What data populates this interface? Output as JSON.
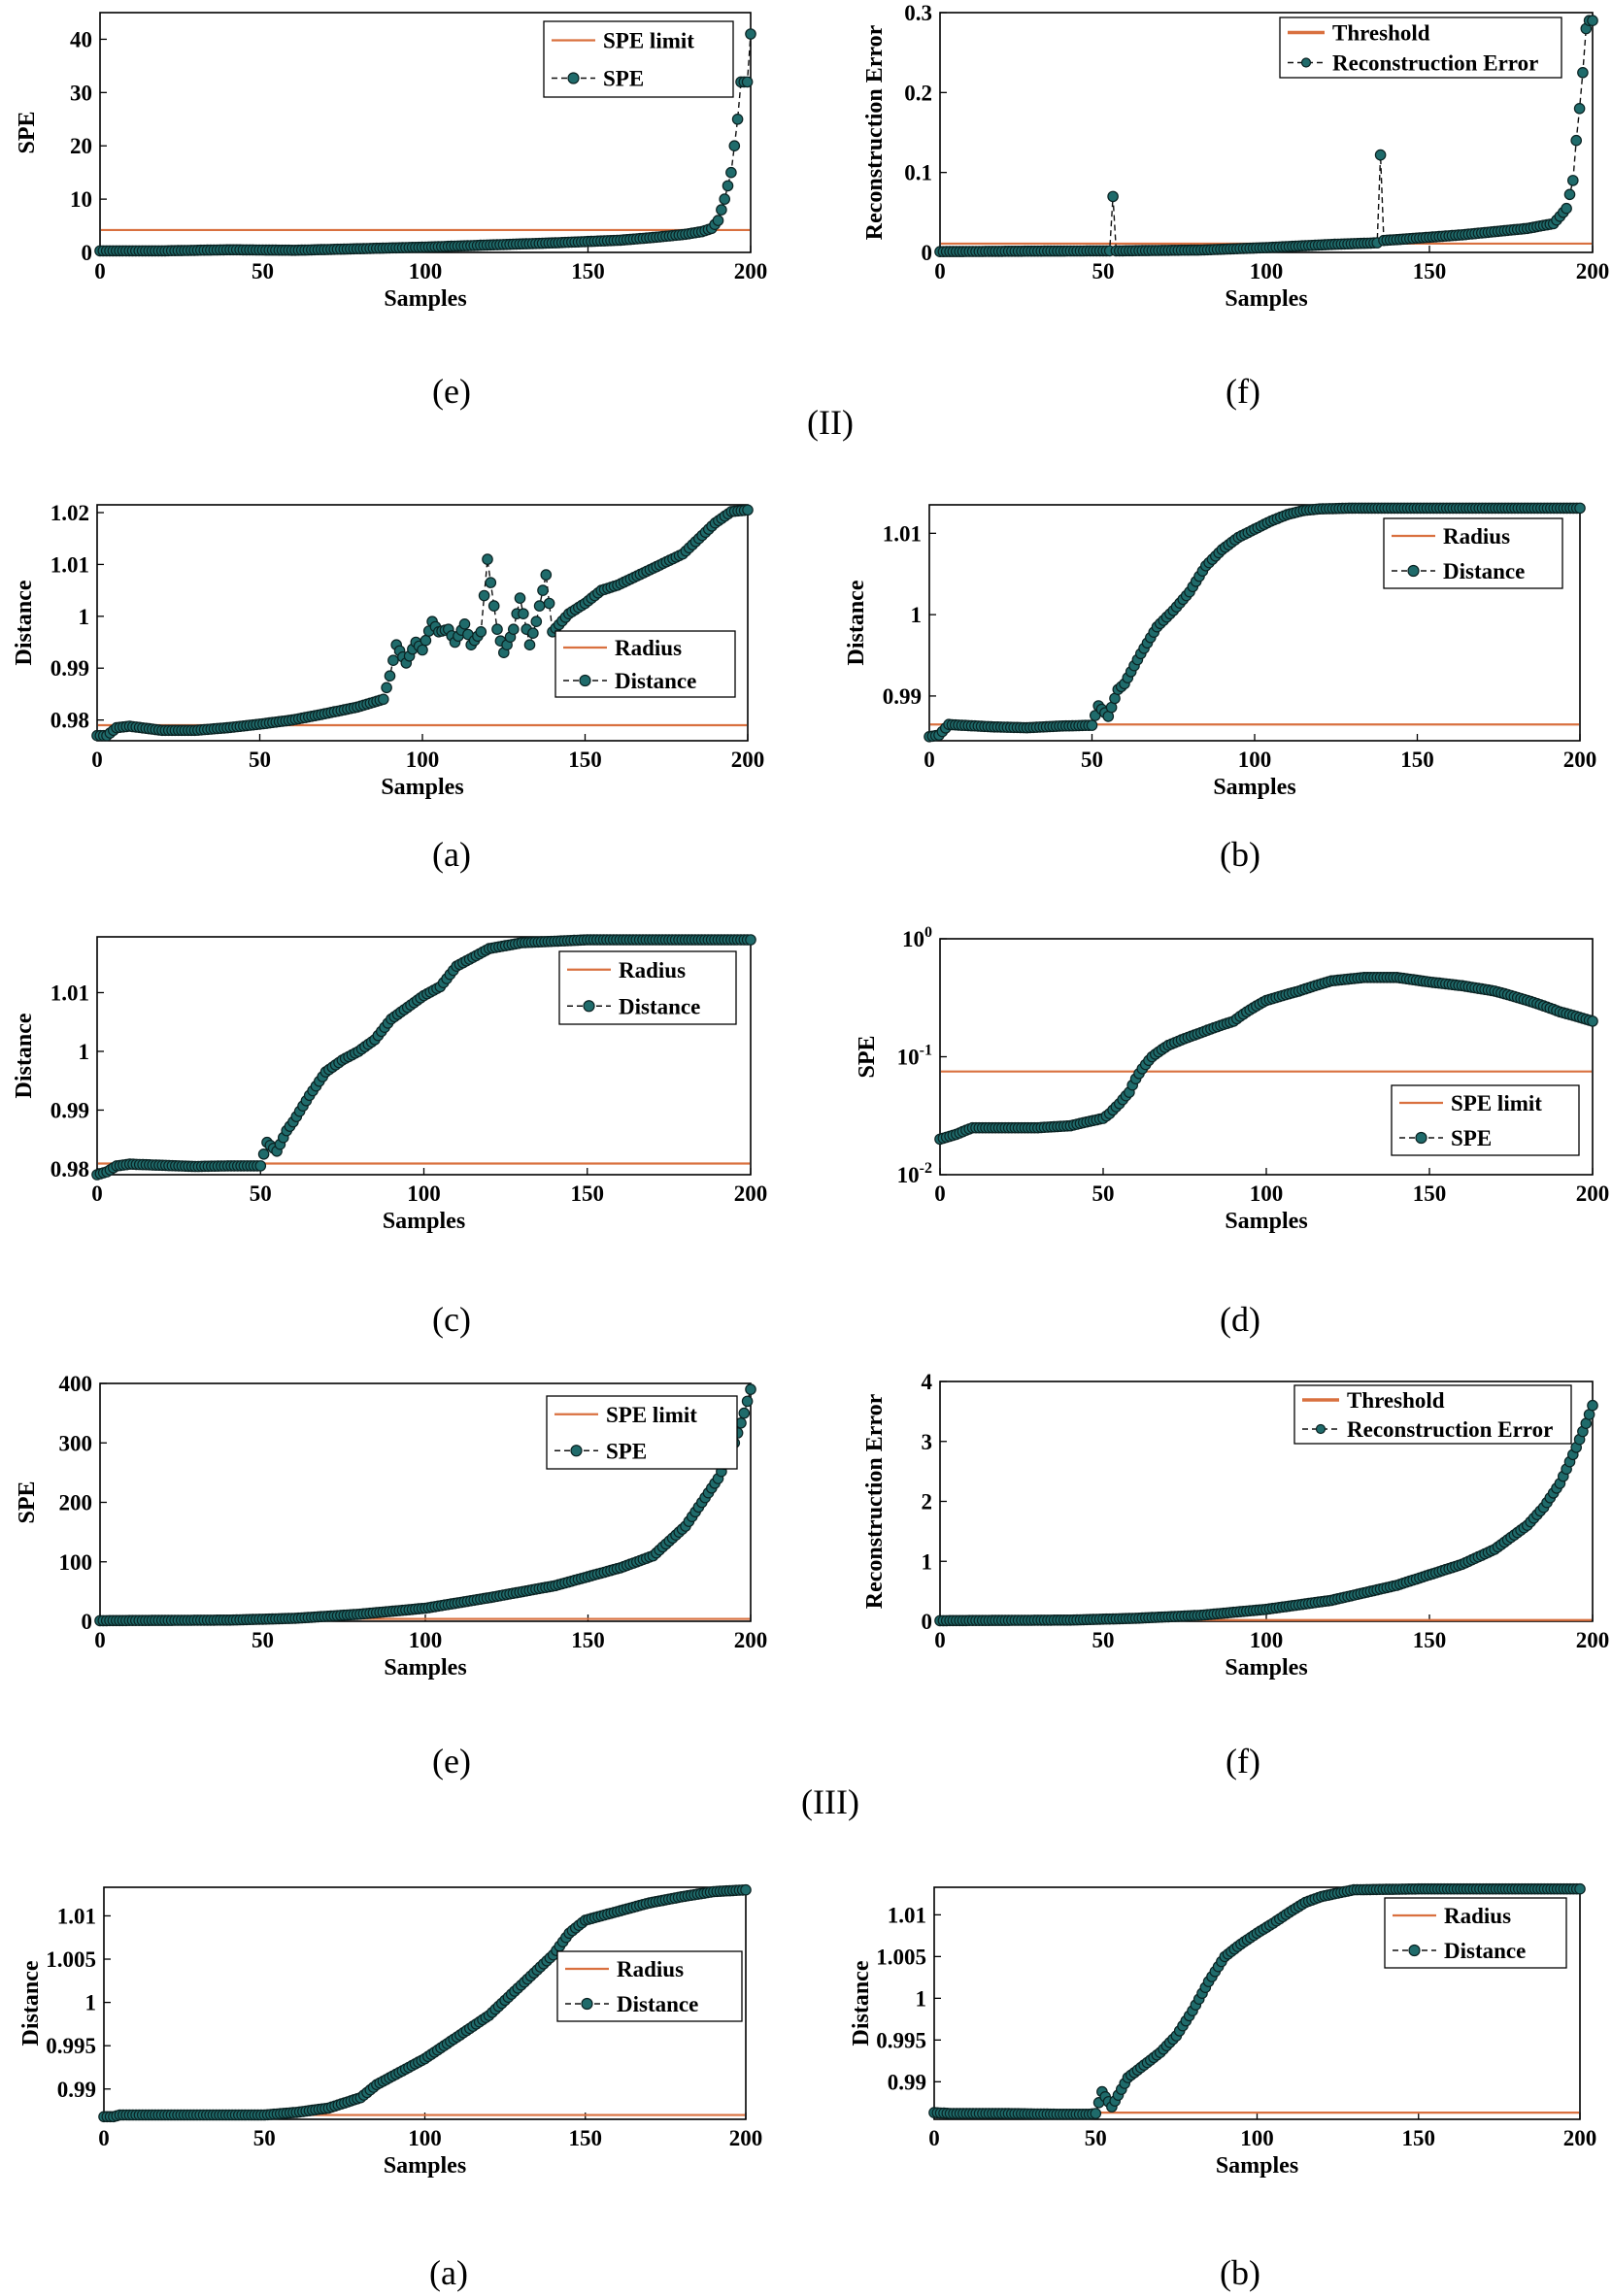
{
  "colors": {
    "limit": "#d9703f",
    "marker_fill": "#1f6b6b",
    "marker_edge": "#0a2222",
    "line": "#111111"
  },
  "captions": [
    {
      "id": "cap-e1",
      "text": "(e)"
    },
    {
      "id": "cap-f1",
      "text": "(f)"
    },
    {
      "id": "cap-II",
      "text": "(II)"
    },
    {
      "id": "cap-a1",
      "text": "(a)"
    },
    {
      "id": "cap-b1",
      "text": "(b)"
    },
    {
      "id": "cap-c1",
      "text": "(c)"
    },
    {
      "id": "cap-d1",
      "text": "(d)"
    },
    {
      "id": "cap-e2",
      "text": "(e)"
    },
    {
      "id": "cap-f2",
      "text": "(f)"
    },
    {
      "id": "cap-III",
      "text": "(III)"
    },
    {
      "id": "cap-a2",
      "text": "(a)"
    },
    {
      "id": "cap-b2",
      "text": "(b)"
    }
  ],
  "chart_data": [
    {
      "id": "II-e",
      "type": "line",
      "xlabel": "Samples",
      "ylabel": "SPE",
      "xlim": [
        0,
        200
      ],
      "ylim": [
        0,
        45
      ],
      "xticks": [
        "0",
        "50",
        "100",
        "150",
        "200"
      ],
      "yticks": [
        "0",
        "10",
        "20",
        "30",
        "40"
      ],
      "legend": {
        "position": "top-right",
        "items": [
          "SPE limit",
          "SPE"
        ]
      },
      "series": [
        {
          "name": "SPE limit",
          "constant": 4.2
        },
        {
          "name": "SPE",
          "x": [
            0,
            20,
            40,
            60,
            80,
            100,
            120,
            140,
            160,
            170,
            180,
            185,
            188,
            190,
            192,
            194,
            195,
            196,
            197,
            198,
            199,
            200
          ],
          "y": [
            0.3,
            0.3,
            0.5,
            0.4,
            0.7,
            1.0,
            1.4,
            1.8,
            2.3,
            2.8,
            3.4,
            3.9,
            4.5,
            6,
            10,
            15,
            20,
            25,
            32,
            32,
            32,
            41
          ]
        }
      ]
    },
    {
      "id": "II-f",
      "type": "line",
      "xlabel": "Samples",
      "ylabel": "Reconstruction Error",
      "xlim": [
        0,
        200
      ],
      "ylim": [
        0,
        0.3
      ],
      "xticks": [
        "0",
        "50",
        "100",
        "150",
        "200"
      ],
      "yticks": [
        "0",
        "0.1",
        "0.2",
        "0.3"
      ],
      "legend": {
        "position": "top-right",
        "items": [
          "Threshold",
          "Reconstruction Error"
        ]
      },
      "series": [
        {
          "name": "Threshold",
          "constant": 0.011
        },
        {
          "name": "Reconstruction Error",
          "x": [
            0,
            50,
            52,
            53,
            54,
            56,
            80,
            100,
            120,
            134,
            135,
            136,
            140,
            160,
            180,
            188,
            190,
            192,
            194,
            195,
            196,
            197,
            198,
            199,
            200
          ],
          "y": [
            0.001,
            0.002,
            0.002,
            0.07,
            0.002,
            0.002,
            0.003,
            0.006,
            0.01,
            0.012,
            0.122,
            0.015,
            0.016,
            0.022,
            0.03,
            0.036,
            0.045,
            0.055,
            0.09,
            0.14,
            0.18,
            0.225,
            0.28,
            0.29,
            0.29
          ]
        }
      ]
    },
    {
      "id": "IIa",
      "type": "line",
      "xlabel": "Samples",
      "ylabel": "Distance",
      "xlim": [
        0,
        200
      ],
      "ylim": [
        0.976,
        1.0215
      ],
      "xticks": [
        "0",
        "50",
        "100",
        "150",
        "200"
      ],
      "yticks": [
        "0.98",
        "0.99",
        "1",
        "1.01",
        "1.02"
      ],
      "legend": {
        "position": "right",
        "items": [
          "Radius",
          "Distance"
        ]
      },
      "series": [
        {
          "name": "Radius",
          "constant": 0.979
        },
        {
          "name": "Distance",
          "x": [
            0,
            3,
            6,
            10,
            20,
            30,
            40,
            50,
            60,
            70,
            80,
            88,
            90,
            92,
            95,
            98,
            100,
            103,
            105,
            108,
            110,
            113,
            115,
            118,
            120,
            123,
            125,
            128,
            130,
            133,
            135,
            138,
            140,
            145,
            150,
            155,
            160,
            165,
            170,
            175,
            180,
            185,
            190,
            195,
            200
          ],
          "y": [
            0.977,
            0.977,
            0.9785,
            0.9788,
            0.978,
            0.978,
            0.9785,
            0.9792,
            0.98,
            0.9812,
            0.9825,
            0.984,
            0.9885,
            0.9945,
            0.991,
            0.995,
            0.9935,
            0.999,
            0.997,
            0.9975,
            0.995,
            0.9985,
            0.9945,
            0.997,
            1.011,
            0.9975,
            0.993,
            0.9975,
            1.0035,
            0.9945,
            0.999,
            1.008,
            0.997,
            1.0005,
            1.0025,
            1.005,
            1.006,
            1.0075,
            1.009,
            1.0105,
            1.012,
            1.015,
            1.018,
            1.0202,
            1.0205
          ]
        }
      ]
    },
    {
      "id": "IIb",
      "type": "line",
      "xlabel": "Samples",
      "ylabel": "Distance",
      "xlim": [
        0,
        200
      ],
      "ylim": [
        0.9845,
        1.0135
      ],
      "xticks": [
        "0",
        "50",
        "100",
        "150",
        "200"
      ],
      "yticks": [
        "0.99",
        "1",
        "1.01"
      ],
      "legend": {
        "position": "top-right",
        "items": [
          "Radius",
          "Distance"
        ]
      },
      "series": [
        {
          "name": "Radius",
          "constant": 0.9865
        },
        {
          "name": "Distance",
          "x": [
            0,
            3,
            6,
            10,
            20,
            30,
            40,
            50,
            52,
            55,
            58,
            60,
            65,
            70,
            75,
            80,
            85,
            90,
            95,
            100,
            105,
            110,
            115,
            120,
            130,
            150,
            175,
            200
          ],
          "y": [
            0.985,
            0.9852,
            0.9865,
            0.9864,
            0.9862,
            0.9861,
            0.9863,
            0.9864,
            0.9888,
            0.9875,
            0.9908,
            0.9915,
            0.9952,
            0.9985,
            1.0005,
            1.0028,
            1.006,
            1.008,
            1.0095,
            1.0105,
            1.0115,
            1.0123,
            1.0128,
            1.013,
            1.0131,
            1.0131,
            1.0131,
            1.0131
          ]
        }
      ]
    },
    {
      "id": "IIc",
      "type": "line",
      "xlabel": "Samples",
      "ylabel": "Distance",
      "xlim": [
        0,
        200
      ],
      "ylim": [
        0.979,
        1.0195
      ],
      "xticks": [
        "0",
        "50",
        "100",
        "150",
        "200"
      ],
      "yticks": [
        "0.98",
        "0.99",
        "1",
        "1.01"
      ],
      "legend": {
        "position": "top-right",
        "items": [
          "Radius",
          "Distance"
        ]
      },
      "series": [
        {
          "name": "Radius",
          "constant": 0.9809
        },
        {
          "name": "Distance",
          "x": [
            0,
            3,
            6,
            10,
            20,
            30,
            40,
            50,
            52,
            55,
            58,
            60,
            65,
            70,
            75,
            80,
            85,
            90,
            95,
            100,
            105,
            110,
            115,
            120,
            130,
            150,
            175,
            200
          ],
          "y": [
            0.979,
            0.9795,
            0.9805,
            0.9808,
            0.9806,
            0.9804,
            0.9805,
            0.9805,
            0.9845,
            0.983,
            0.9865,
            0.988,
            0.9925,
            0.9965,
            0.9985,
            1.0,
            1.002,
            1.0055,
            1.0075,
            1.0095,
            1.011,
            1.0145,
            1.016,
            1.0175,
            1.0185,
            1.019,
            1.019,
            1.019
          ]
        }
      ]
    },
    {
      "id": "IId",
      "type": "line",
      "xlabel": "Samples",
      "ylabel": "SPE",
      "xlim": [
        0,
        200
      ],
      "ylim": [
        0.01,
        1
      ],
      "yscale": "log",
      "xticks": [
        "0",
        "50",
        "100",
        "150",
        "200"
      ],
      "yticks": [
        "10^-2",
        "10^-1",
        "10^0"
      ],
      "legend": {
        "position": "bottom-right",
        "items": [
          "SPE limit",
          "SPE"
        ]
      },
      "series": [
        {
          "name": "SPE limit",
          "constant": 0.075
        },
        {
          "name": "SPE",
          "x": [
            0,
            5,
            10,
            20,
            30,
            40,
            45,
            50,
            52,
            55,
            58,
            60,
            65,
            70,
            80,
            90,
            100,
            110,
            120,
            130,
            140,
            150,
            160,
            170,
            180,
            190,
            200
          ],
          "y": [
            0.02,
            0.022,
            0.025,
            0.025,
            0.025,
            0.026,
            0.028,
            0.03,
            0.033,
            0.04,
            0.05,
            0.065,
            0.1,
            0.125,
            0.16,
            0.2,
            0.3,
            0.36,
            0.44,
            0.47,
            0.47,
            0.43,
            0.4,
            0.36,
            0.3,
            0.24,
            0.2
          ]
        }
      ]
    },
    {
      "id": "III-e",
      "type": "line",
      "xlabel": "Samples",
      "ylabel": "SPE",
      "xlim": [
        0,
        200
      ],
      "ylim": [
        0,
        400
      ],
      "xticks": [
        "0",
        "50",
        "100",
        "150",
        "200"
      ],
      "yticks": [
        "0",
        "100",
        "200",
        "300",
        "400"
      ],
      "legend": {
        "position": "top-right",
        "items": [
          "SPE limit",
          "SPE"
        ]
      },
      "series": [
        {
          "name": "SPE limit",
          "constant": 4
        },
        {
          "name": "SPE",
          "x": [
            0,
            40,
            60,
            80,
            100,
            120,
            140,
            160,
            170,
            180,
            185,
            190,
            195,
            198,
            200
          ],
          "y": [
            1,
            2,
            5,
            12,
            22,
            40,
            60,
            90,
            110,
            160,
            200,
            240,
            300,
            350,
            390
          ]
        }
      ]
    },
    {
      "id": "III-f",
      "type": "line",
      "xlabel": "Samples",
      "ylabel": "Reconstruction Error",
      "xlim": [
        0,
        200
      ],
      "ylim": [
        0,
        4
      ],
      "xticks": [
        "0",
        "50",
        "100",
        "150",
        "200"
      ],
      "yticks": [
        "0",
        "1",
        "2",
        "3",
        "4"
      ],
      "legend": {
        "position": "top-right",
        "items": [
          "Threshold",
          "Reconstruction Error"
        ]
      },
      "series": [
        {
          "name": "Threshold",
          "constant": 0.02
        },
        {
          "name": "Reconstruction Error",
          "x": [
            0,
            40,
            60,
            80,
            100,
            120,
            140,
            160,
            170,
            180,
            185,
            190,
            195,
            198,
            200
          ],
          "y": [
            0.01,
            0.02,
            0.05,
            0.1,
            0.2,
            0.35,
            0.6,
            0.95,
            1.2,
            1.6,
            1.9,
            2.3,
            2.9,
            3.3,
            3.6
          ]
        }
      ]
    },
    {
      "id": "IIIa",
      "type": "line",
      "xlabel": "Samples",
      "ylabel": "Distance",
      "xlim": [
        0,
        200
      ],
      "ylim": [
        0.9865,
        1.0133
      ],
      "xticks": [
        "0",
        "50",
        "100",
        "150",
        "200"
      ],
      "yticks": [
        "0.99",
        "0.995",
        "1",
        "1.005",
        "1.01"
      ],
      "legend": {
        "position": "right",
        "items": [
          "Radius",
          "Distance"
        ]
      },
      "series": [
        {
          "name": "Radius",
          "constant": 0.987
        },
        {
          "name": "Distance",
          "x": [
            0,
            3,
            5,
            20,
            40,
            50,
            60,
            70,
            80,
            85,
            90,
            100,
            110,
            120,
            130,
            140,
            145,
            150,
            160,
            170,
            180,
            190,
            200
          ],
          "y": [
            0.9868,
            0.9868,
            0.987,
            0.987,
            0.987,
            0.987,
            0.9873,
            0.9878,
            0.989,
            0.9905,
            0.9915,
            0.9935,
            0.996,
            0.9985,
            1.002,
            1.0055,
            1.008,
            1.0095,
            1.0105,
            1.0115,
            1.0122,
            1.0128,
            1.013
          ]
        }
      ]
    },
    {
      "id": "IIIb",
      "type": "line",
      "xlabel": "Samples",
      "ylabel": "Distance",
      "xlim": [
        0,
        200
      ],
      "ylim": [
        0.9855,
        1.0133
      ],
      "xticks": [
        "0",
        "50",
        "100",
        "150",
        "200"
      ],
      "yticks": [
        "0.99",
        "0.995",
        "1",
        "1.005",
        "1.01"
      ],
      "legend": {
        "position": "top-right",
        "items": [
          "Radius",
          "Distance"
        ]
      },
      "series": [
        {
          "name": "Radius",
          "constant": 0.9863
        },
        {
          "name": "Distance",
          "x": [
            0,
            5,
            20,
            40,
            48,
            50,
            52,
            55,
            60,
            65,
            70,
            75,
            80,
            85,
            90,
            95,
            100,
            105,
            110,
            115,
            120,
            130,
            150,
            175,
            200
          ],
          "y": [
            0.9863,
            0.9862,
            0.9862,
            0.9861,
            0.9861,
            0.9862,
            0.9888,
            0.987,
            0.9905,
            0.992,
            0.9935,
            0.9955,
            0.9985,
            1.002,
            1.005,
            1.0065,
            1.0078,
            1.009,
            1.0103,
            1.0115,
            1.0122,
            1.013,
            1.0131,
            1.0131,
            1.0131
          ]
        }
      ]
    }
  ]
}
